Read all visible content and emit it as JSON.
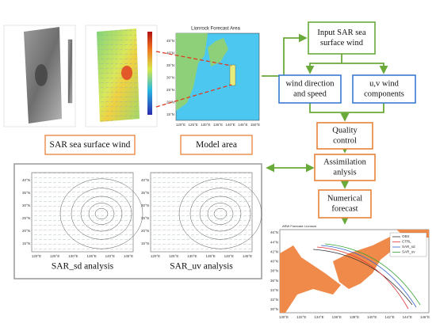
{
  "sar_images": {
    "caption": "SAR sea surface wind"
  },
  "model_area": {
    "title": "Lionrock Forecast Area",
    "caption": "Model area",
    "x_labels": [
      "120°E",
      "125°E",
      "130°E",
      "135°E",
      "140°E",
      "145°E",
      "150°E"
    ],
    "y_labels": [
      "45°N",
      "40°N",
      "35°N",
      "30°N",
      "25°N",
      "20°N",
      "15°N"
    ]
  },
  "flow": {
    "nodes": [
      {
        "lines": [
          "Input  SAR sea",
          "surface wind"
        ]
      },
      {
        "lines": [
          "wind direction",
          "and speed"
        ]
      },
      {
        "lines": [
          "u,v wind",
          "components"
        ]
      },
      {
        "lines": [
          "Quality",
          "control"
        ]
      },
      {
        "lines": [
          "Assimilation",
          "anlysis"
        ]
      },
      {
        "lines": [
          "Numerical",
          "forecast"
        ]
      }
    ]
  },
  "analysis": {
    "panels": [
      {
        "caption": "SAR_sd analysis",
        "x_labels": [
          "120°E",
          "125°E",
          "130°E",
          "135°E",
          "140°E",
          "145°E"
        ],
        "y_labels": [
          "40°N",
          "35°N",
          "30°N",
          "25°N",
          "20°N",
          "15°N"
        ]
      },
      {
        "caption": "SAR_uv analysis",
        "x_labels": [
          "120°E",
          "125°E",
          "130°E",
          "135°E",
          "140°E",
          "145°E"
        ],
        "y_labels": [
          "40°N",
          "35°N",
          "30°N",
          "25°N",
          "20°N",
          "15°N"
        ]
      }
    ]
  },
  "forecast_map": {
    "title": "ARW Forecast: Lionrock",
    "legend": [
      "OBS",
      "CTRL",
      "SAR_sd",
      "SAR_uv"
    ],
    "x_labels": [
      "130°E",
      "132°E",
      "134°E",
      "136°E",
      "138°E",
      "140°E",
      "142°E",
      "144°E",
      "146°E"
    ],
    "y_labels": [
      "46°N",
      "44°N",
      "42°N",
      "40°N",
      "38°N",
      "36°N",
      "34°N",
      "32°N",
      "30°N"
    ]
  }
}
